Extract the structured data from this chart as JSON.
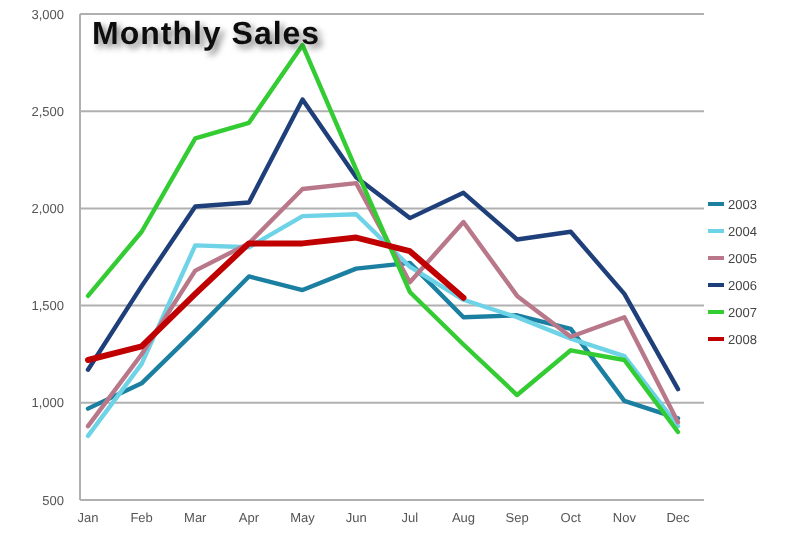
{
  "chart_data": {
    "type": "line",
    "title": "Monthly Sales",
    "categories": [
      "Jan",
      "Feb",
      "Mar",
      "Apr",
      "May",
      "Jun",
      "Jul",
      "Aug",
      "Sep",
      "Oct",
      "Nov",
      "Dec"
    ],
    "ylim": [
      500,
      3000
    ],
    "yticks": [
      {
        "value": 500,
        "label": "500"
      },
      {
        "value": 1000,
        "label": "1,000"
      },
      {
        "value": 1500,
        "label": "1,500"
      },
      {
        "value": 2000,
        "label": "2,000"
      },
      {
        "value": 2500,
        "label": "2,500"
      },
      {
        "value": 3000,
        "label": "3,000"
      }
    ],
    "grid": "y",
    "legend": "right",
    "marker": "none",
    "series": [
      {
        "name": "2003",
        "color": "#1a7fa0",
        "values": [
          970,
          1100,
          1370,
          1650,
          1580,
          1690,
          1720,
          1440,
          1450,
          1380,
          1010,
          920
        ]
      },
      {
        "name": "2004",
        "color": "#6fd3e8",
        "values": [
          830,
          1200,
          1810,
          1800,
          1960,
          1970,
          1700,
          1530,
          1440,
          1330,
          1240,
          880
        ]
      },
      {
        "name": "2005",
        "color": "#b8788a",
        "values": [
          880,
          1250,
          1680,
          1820,
          2100,
          2130,
          1620,
          1930,
          1550,
          1340,
          1440,
          900
        ]
      },
      {
        "name": "2006",
        "color": "#1f3f7a",
        "values": [
          1170,
          1600,
          2010,
          2030,
          2560,
          2160,
          1950,
          2080,
          1840,
          1880,
          1560,
          1070
        ]
      },
      {
        "name": "2007",
        "color": "#33cc33",
        "values": [
          1550,
          1880,
          2360,
          2440,
          2840,
          2200,
          1570,
          1300,
          1040,
          1270,
          1220,
          850
        ]
      },
      {
        "name": "2008",
        "color": "#c00000",
        "values": [
          1220,
          1290,
          1560,
          1820,
          1820,
          1850,
          1780,
          1540,
          null,
          null,
          null,
          null
        ]
      }
    ]
  }
}
